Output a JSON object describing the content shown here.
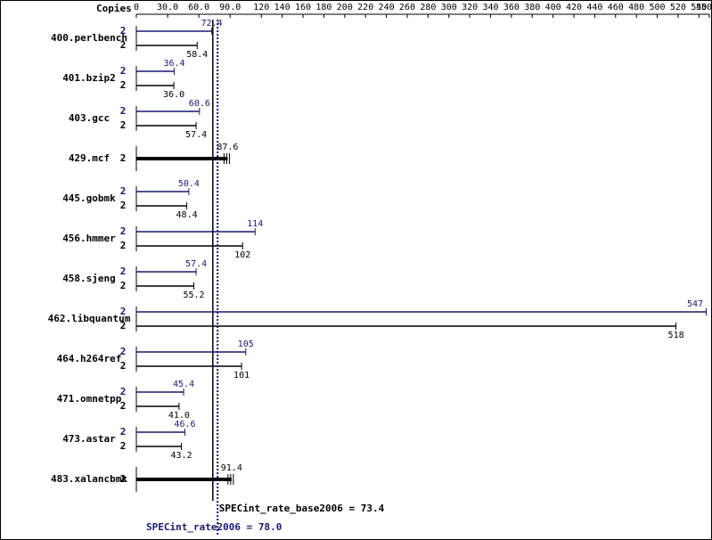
{
  "chart_data": {
    "type": "spec-bar",
    "axis_label": "Copies",
    "xlim": [
      0,
      550
    ],
    "xticks": [
      0,
      {
        "value": 30,
        "label": "30.0"
      },
      {
        "value": 60,
        "label": "60.0"
      },
      {
        "value": 90,
        "label": "90.0"
      },
      120,
      140,
      160,
      180,
      200,
      220,
      240,
      260,
      280,
      300,
      320,
      340,
      360,
      380,
      400,
      420,
      440,
      460,
      480,
      500,
      520,
      540,
      550
    ],
    "categories": [
      "400.perlbench",
      "401.bzip2",
      "403.gcc",
      "429.mcf",
      "445.gobmk",
      "456.hmmer",
      "458.sjeng",
      "462.libquantum",
      "464.h264ref",
      "471.omnetpp",
      "473.astar",
      "483.xalancbmk"
    ],
    "series": [
      {
        "color": "#191970",
        "copies": [
          2,
          2,
          2,
          null,
          2,
          2,
          2,
          2,
          2,
          2,
          2,
          null
        ],
        "values": [
          72.4,
          36.4,
          60.6,
          null,
          50.4,
          114,
          57.4,
          547,
          105,
          45.4,
          46.6,
          null
        ],
        "value_labels": [
          "72.4",
          "36.4",
          "60.6",
          null,
          "50.4",
          "114",
          "57.4",
          "547",
          "105",
          "45.4",
          "46.6",
          null
        ]
      },
      {
        "color": "#000000",
        "copies": [
          2,
          2,
          2,
          2,
          2,
          2,
          2,
          2,
          2,
          2,
          2,
          2
        ],
        "values": [
          58.4,
          36.0,
          57.4,
          87.6,
          48.4,
          102,
          55.2,
          518,
          101,
          41.0,
          43.2,
          91.4
        ],
        "value_labels": [
          "58.4",
          "36.0",
          "57.4",
          "87.6",
          "48.4",
          "102",
          "55.2",
          "518",
          "101",
          "41.0",
          "43.2",
          "91.4"
        ]
      }
    ],
    "reference_lines": [
      {
        "label": "SPECint_rate_base2006 = 73.4",
        "value": 73.4,
        "color": "#000000"
      },
      {
        "label": "SPECint_rate2006 = 78.0",
        "value": 78.0,
        "color": "#191970"
      }
    ]
  }
}
